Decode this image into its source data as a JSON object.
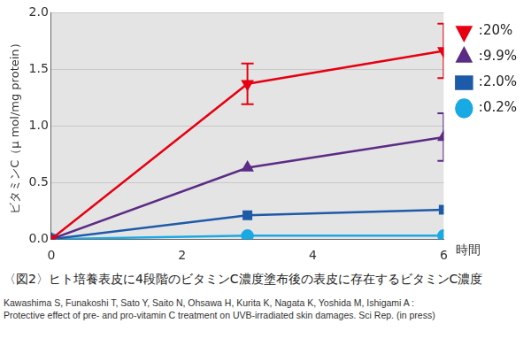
{
  "chart_data": {
    "type": "line",
    "x_label": "時間",
    "y_label": "ビタミンC（μ mol/mg protein）",
    "caption": "〈図2〉ヒト培養表皮に4段階のビタミンC濃度塗布後の表皮に存在するビタミンC濃度",
    "source": [
      "Kawashima S, Funakoshi T, Sato Y, Saito N, Ohsawa H, Kurita K, Nagata K, Yoshida M, Ishigami A :",
      "Protective effect of pre- and pro-vitamin C treatment on UVB-irradiated skin damages. Sci Rep. (in press)"
    ],
    "x": [
      0,
      3,
      6
    ],
    "series": [
      {
        "name": ":20%",
        "color": "#e60012",
        "marker": "triangle-down",
        "values": [
          0,
          1.37,
          1.66
        ],
        "errors": [
          null,
          0.18,
          0.24
        ]
      },
      {
        "name": ":9.9%",
        "color": "#5b2c86",
        "marker": "triangle",
        "values": [
          0,
          0.63,
          0.9
        ],
        "errors": [
          null,
          null,
          0.21
        ]
      },
      {
        "name": ":2.0%",
        "color": "#1d5aa8",
        "marker": "square",
        "values": [
          0,
          0.21,
          0.26
        ],
        "errors": [
          null,
          null,
          null
        ]
      },
      {
        "name": ":0.2%",
        "color": "#19a9e3",
        "marker": "circle",
        "values": [
          0,
          0.03,
          0.03
        ],
        "errors": [
          null,
          null,
          null
        ]
      }
    ],
    "xlim": [
      0,
      6
    ],
    "xticks": [
      0,
      2,
      4,
      6
    ],
    "ylim": [
      0,
      2
    ],
    "yticks": [
      {
        "value": 0,
        "label": "0.0"
      },
      0.5,
      {
        "value": 1,
        "label": "1.0"
      },
      1.5,
      {
        "value": 2,
        "label": "2.0"
      }
    ],
    "grid": true,
    "legend": "right"
  }
}
